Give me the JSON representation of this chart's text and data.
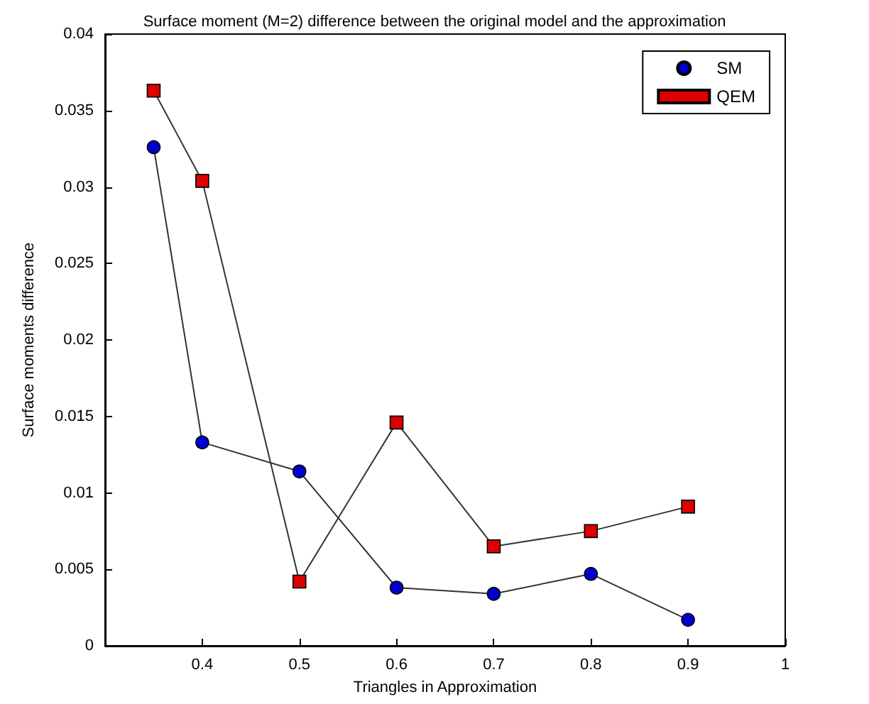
{
  "chart_data": {
    "type": "line",
    "title": "Surface moment (M=2) difference between the original model and the approximation",
    "xlabel": "Triangles in Approximation",
    "ylabel": "Surface moments difference",
    "x": [
      0.35,
      0.4,
      0.5,
      0.6,
      0.7,
      0.8,
      0.9
    ],
    "series": [
      {
        "name": "SM",
        "color": "#0000cc",
        "marker": "circle",
        "values": [
          0.0326,
          0.0133,
          0.0114,
          0.0038,
          0.0034,
          0.0047,
          0.0017
        ]
      },
      {
        "name": "QEM",
        "color": "#dd0000",
        "marker": "square",
        "values": [
          0.0363,
          0.0304,
          0.0042,
          0.0146,
          0.0065,
          0.0075,
          0.0091
        ]
      }
    ],
    "xlim": [
      0.3,
      1
    ],
    "xticks": [
      0.4,
      0.5,
      0.6,
      0.7,
      0.8,
      0.9,
      1
    ],
    "ylim": [
      0,
      0.04
    ],
    "yticks": [
      0,
      0.005,
      0.01,
      0.015,
      0.02,
      0.025,
      0.03,
      0.035,
      0.04
    ],
    "grid": false,
    "legend": "top right",
    "line_style": "solid"
  }
}
